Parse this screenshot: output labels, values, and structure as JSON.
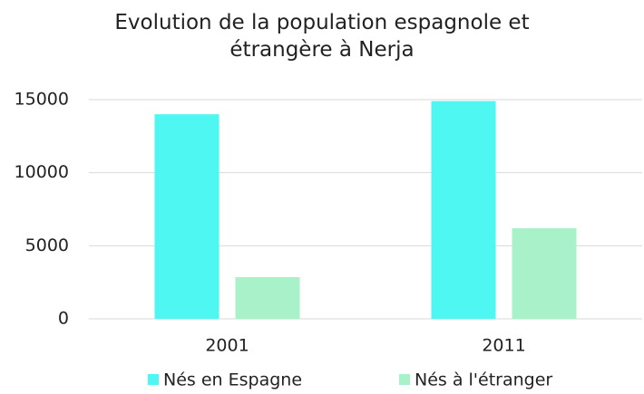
{
  "chart_data": {
    "type": "bar",
    "title": "Evolution de la population espagnole et étrangère à Nerja",
    "categories": [
      "2001",
      "2011"
    ],
    "series": [
      {
        "name": "Nés en Espagne",
        "color": "#4ef7f2",
        "values": [
          14000,
          14900
        ]
      },
      {
        "name": "Nés à l'étranger",
        "color": "#a9f1c9",
        "values": [
          2850,
          6200
        ]
      }
    ],
    "ylim": [
      0,
      15000
    ],
    "yticks": [
      0,
      5000,
      10000,
      15000
    ],
    "grid": true,
    "legend": "bottom"
  }
}
